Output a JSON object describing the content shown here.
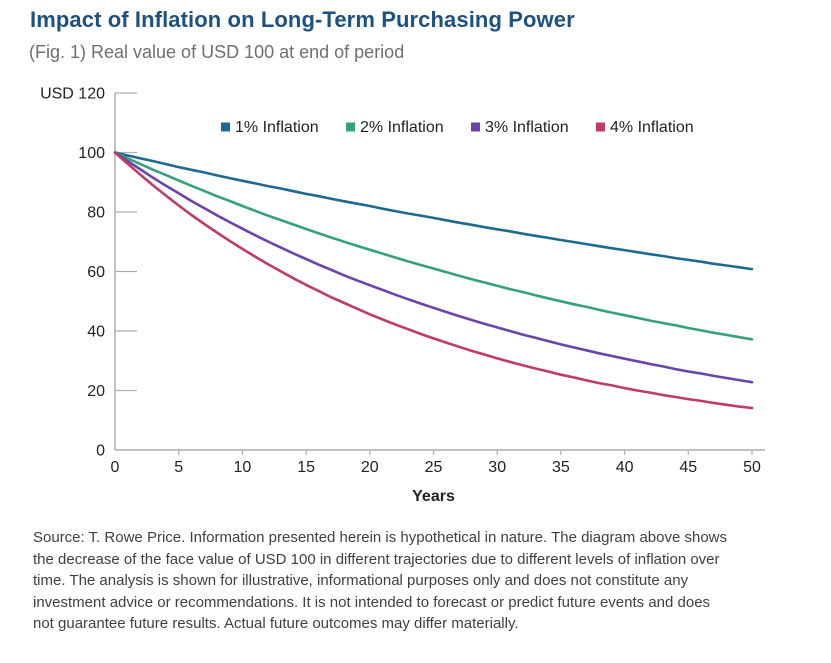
{
  "header": {
    "title": "Impact of Inflation on Long-Term Purchasing Power",
    "subtitle": "(Fig. 1) Real value of USD 100 at end of period"
  },
  "colors": {
    "title": "#1d5180",
    "subtitle": "#6e6f72",
    "axis": "#aeaeb0",
    "tick_label": "#231f20",
    "source_text": "#3f3f41"
  },
  "chart_data": {
    "type": "line",
    "title": "Impact of Inflation on Long-Term Purchasing Power",
    "subtitle": "(Fig. 1) Real value of USD 100 at end of period",
    "xlabel": "Years",
    "ylabel": "USD",
    "y_top_tick_label": "USD 120",
    "xlim": [
      0,
      50
    ],
    "ylim": [
      0,
      120
    ],
    "x_ticks": [
      0,
      5,
      10,
      15,
      20,
      25,
      30,
      35,
      40,
      45,
      50
    ],
    "y_ticks": [
      0,
      20,
      40,
      60,
      80,
      100,
      120
    ],
    "grid": false,
    "legend_position": "top-center",
    "x": [
      0,
      1,
      2,
      3,
      4,
      5,
      6,
      7,
      8,
      9,
      10,
      11,
      12,
      13,
      14,
      15,
      16,
      17,
      18,
      19,
      20,
      21,
      22,
      23,
      24,
      25,
      26,
      27,
      28,
      29,
      30,
      31,
      32,
      33,
      34,
      35,
      36,
      37,
      38,
      39,
      40,
      41,
      42,
      43,
      44,
      45,
      46,
      47,
      48,
      49,
      50
    ],
    "series": [
      {
        "name": "1% Inflation",
        "color": "#1e6991",
        "values": [
          100,
          99,
          98,
          97.1,
          96.1,
          95.1,
          94.2,
          93.3,
          92.3,
          91.4,
          90.5,
          89.6,
          88.7,
          87.9,
          87,
          86.1,
          85.3,
          84.4,
          83.6,
          82.8,
          82,
          81.1,
          80.3,
          79.5,
          78.8,
          78,
          77.2,
          76.4,
          75.7,
          74.9,
          74.2,
          73.5,
          72.7,
          72,
          71.3,
          70.6,
          69.9,
          69.2,
          68.5,
          67.8,
          67.2,
          66.5,
          65.8,
          65.2,
          64.5,
          63.9,
          63.3,
          62.6,
          62,
          61.4,
          60.8
        ]
      },
      {
        "name": "2% Inflation",
        "color": "#34a17c",
        "values": [
          100,
          98,
          96.1,
          94.2,
          92.4,
          90.6,
          88.8,
          87.1,
          85.3,
          83.7,
          82,
          80.4,
          78.8,
          77.3,
          75.8,
          74.3,
          72.8,
          71.4,
          70,
          68.6,
          67.3,
          66,
          64.7,
          63.4,
          62.2,
          61,
          59.8,
          58.6,
          57.4,
          56.3,
          55.2,
          54.1,
          53.1,
          52,
          51,
          50,
          49,
          48.1,
          47.1,
          46.2,
          45.3,
          44.4,
          43.5,
          42.7,
          41.9,
          41,
          40.2,
          39.4,
          38.7,
          37.9,
          37.2
        ]
      },
      {
        "name": "3% Inflation",
        "color": "#6a44ab",
        "values": [
          100,
          97.1,
          94.3,
          91.5,
          88.8,
          86.3,
          83.7,
          81.3,
          78.9,
          76.6,
          74.4,
          72.2,
          70.1,
          68.1,
          66.1,
          64.2,
          62.3,
          60.5,
          58.7,
          57,
          55.4,
          53.8,
          52.2,
          50.7,
          49.2,
          47.8,
          46.4,
          45,
          43.7,
          42.4,
          41.2,
          40,
          38.8,
          37.7,
          36.6,
          35.5,
          34.5,
          33.5,
          32.5,
          31.6,
          30.7,
          29.8,
          28.9,
          28.1,
          27.2,
          26.4,
          25.7,
          24.9,
          24.2,
          23.5,
          22.8
        ]
      },
      {
        "name": "4% Inflation",
        "color": "#c03b62",
        "values": [
          100,
          96.2,
          92.5,
          88.9,
          85.5,
          82.2,
          79,
          76,
          73.1,
          70.3,
          67.6,
          65,
          62.5,
          60.1,
          57.7,
          55.5,
          53.4,
          51.3,
          49.4,
          47.5,
          45.6,
          43.9,
          42.2,
          40.6,
          39,
          37.5,
          36.1,
          34.7,
          33.3,
          32.1,
          30.8,
          29.6,
          28.5,
          27.4,
          26.4,
          25.3,
          24.4,
          23.4,
          22.5,
          21.7,
          20.8,
          20,
          19.3,
          18.5,
          17.8,
          17.1,
          16.5,
          15.8,
          15.2,
          14.6,
          14.1
        ]
      }
    ]
  },
  "footer": {
    "source_lines": [
      "Source: T. Rowe Price. Information presented herein is hypothetical in nature. The diagram above shows",
      "the decrease of the face value of USD 100 in different trajectories due to different levels of inflation over",
      "time. The analysis is shown for illustrative, informational purposes only and does not constitute any",
      "investment advice or recommendations. It is not intended to forecast or predict future events and does",
      "not guarantee future results. Actual future outcomes may differ materially."
    ]
  }
}
